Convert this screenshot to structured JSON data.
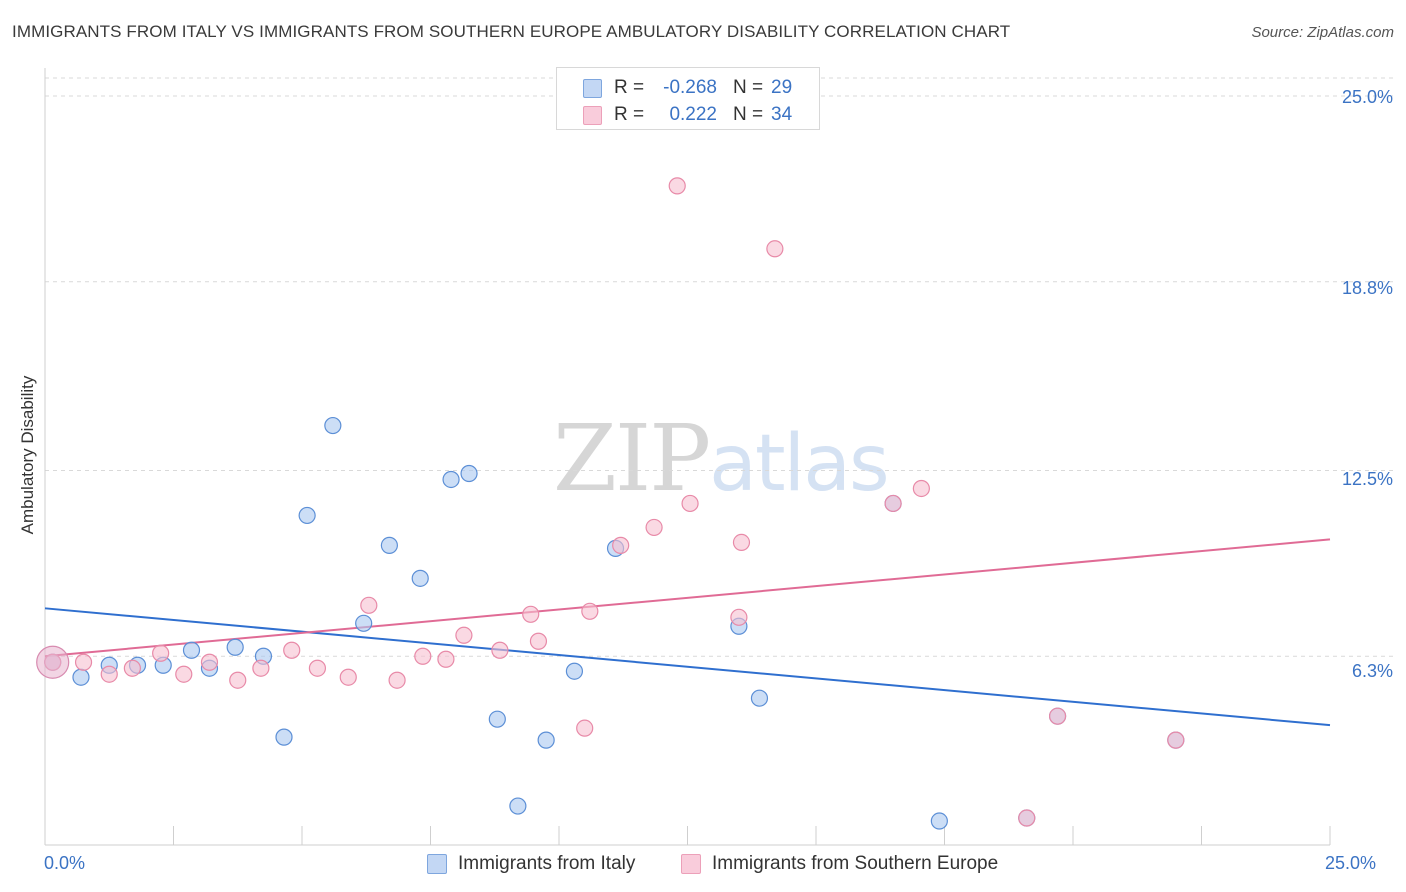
{
  "title": "IMMIGRANTS FROM ITALY VS IMMIGRANTS FROM SOUTHERN EUROPE AMBULATORY DISABILITY CORRELATION CHART",
  "source": "Source: ZipAtlas.com",
  "watermark": {
    "part1": "ZIP",
    "part2": "atlas"
  },
  "legend_top": {
    "rows": [
      {
        "r_label": "R =",
        "r_value": "-0.268",
        "n_label": "N =",
        "n_value": "29"
      },
      {
        "r_label": "R =",
        "r_value": "0.222",
        "n_label": "N =",
        "n_value": "34"
      }
    ]
  },
  "colors": {
    "italy_fill": "#aac8f0",
    "italy_stroke": "#5c8fd6",
    "italy_line": "#2f6fcf",
    "se_fill": "#f6bfd0",
    "se_stroke": "#e88aa8",
    "se_line": "#e06b95",
    "grid": "#d9d9d9",
    "axis": "#cfcfcf",
    "tick_text": "#3b73c4"
  },
  "chart_data": {
    "type": "scatter",
    "title": "IMMIGRANTS FROM ITALY VS IMMIGRANTS FROM SOUTHERN EUROPE AMBULATORY DISABILITY CORRELATION CHART",
    "xlabel": "",
    "ylabel": "Ambulatory Disability",
    "xlim": [
      0,
      25
    ],
    "ylim": [
      0,
      25.6
    ],
    "x_tick_labels": [
      "0.0%",
      "25.0%"
    ],
    "y_ticks": [
      6.3,
      12.5,
      18.8,
      25.0
    ],
    "y_tick_labels": [
      "6.3%",
      "12.5%",
      "18.8%",
      "25.0%"
    ],
    "grid": true,
    "legend_position": "bottom",
    "series": [
      {
        "name": "Immigrants from Italy",
        "R": -0.268,
        "N": 29,
        "trend": [
          [
            0,
            7.9
          ],
          [
            25,
            4.0
          ]
        ],
        "points": [
          [
            0.15,
            6.1
          ],
          [
            0.7,
            5.6
          ],
          [
            1.25,
            6.0
          ],
          [
            1.8,
            6.0
          ],
          [
            2.3,
            6.0
          ],
          [
            2.85,
            6.5
          ],
          [
            3.2,
            5.9
          ],
          [
            3.7,
            6.6
          ],
          [
            4.25,
            6.3
          ],
          [
            4.65,
            3.6
          ],
          [
            5.1,
            11.0
          ],
          [
            5.6,
            14.0
          ],
          [
            6.2,
            7.4
          ],
          [
            6.7,
            10.0
          ],
          [
            7.3,
            8.9
          ],
          [
            7.9,
            12.2
          ],
          [
            8.25,
            12.4
          ],
          [
            8.8,
            4.2
          ],
          [
            9.2,
            1.3
          ],
          [
            9.75,
            3.5
          ],
          [
            10.3,
            5.8
          ],
          [
            11.1,
            9.9
          ],
          [
            13.5,
            7.3
          ],
          [
            13.9,
            4.9
          ],
          [
            16.5,
            11.4
          ],
          [
            17.4,
            0.8
          ],
          [
            19.7,
            4.3
          ],
          [
            22.0,
            3.5
          ],
          [
            19.1,
            0.9
          ]
        ]
      },
      {
        "name": "Immigrants from Southern Europe",
        "R": 0.222,
        "N": 34,
        "trend": [
          [
            0,
            6.3
          ],
          [
            25,
            10.2
          ]
        ],
        "points": [
          [
            0.15,
            6.1
          ],
          [
            0.75,
            6.1
          ],
          [
            1.25,
            5.7
          ],
          [
            1.7,
            5.9
          ],
          [
            2.25,
            6.4
          ],
          [
            2.7,
            5.7
          ],
          [
            3.2,
            6.1
          ],
          [
            3.75,
            5.5
          ],
          [
            4.2,
            5.9
          ],
          [
            4.8,
            6.5
          ],
          [
            5.3,
            5.9
          ],
          [
            5.9,
            5.6
          ],
          [
            6.3,
            8.0
          ],
          [
            6.85,
            5.5
          ],
          [
            7.35,
            6.3
          ],
          [
            7.8,
            6.2
          ],
          [
            8.15,
            7.0
          ],
          [
            8.85,
            6.5
          ],
          [
            9.45,
            7.7
          ],
          [
            9.6,
            6.8
          ],
          [
            10.5,
            3.9
          ],
          [
            10.6,
            7.8
          ],
          [
            11.2,
            10.0
          ],
          [
            11.85,
            10.6
          ],
          [
            12.3,
            22.0
          ],
          [
            12.55,
            11.4
          ],
          [
            13.5,
            7.6
          ],
          [
            13.55,
            10.1
          ],
          [
            14.2,
            19.9
          ],
          [
            16.5,
            11.4
          ],
          [
            17.05,
            11.9
          ],
          [
            19.7,
            4.3
          ],
          [
            22.0,
            3.5
          ],
          [
            19.1,
            0.9
          ]
        ]
      }
    ]
  },
  "legend_bottom": [
    {
      "label": "Immigrants from Italy"
    },
    {
      "label": "Immigrants from Southern Europe"
    }
  ]
}
